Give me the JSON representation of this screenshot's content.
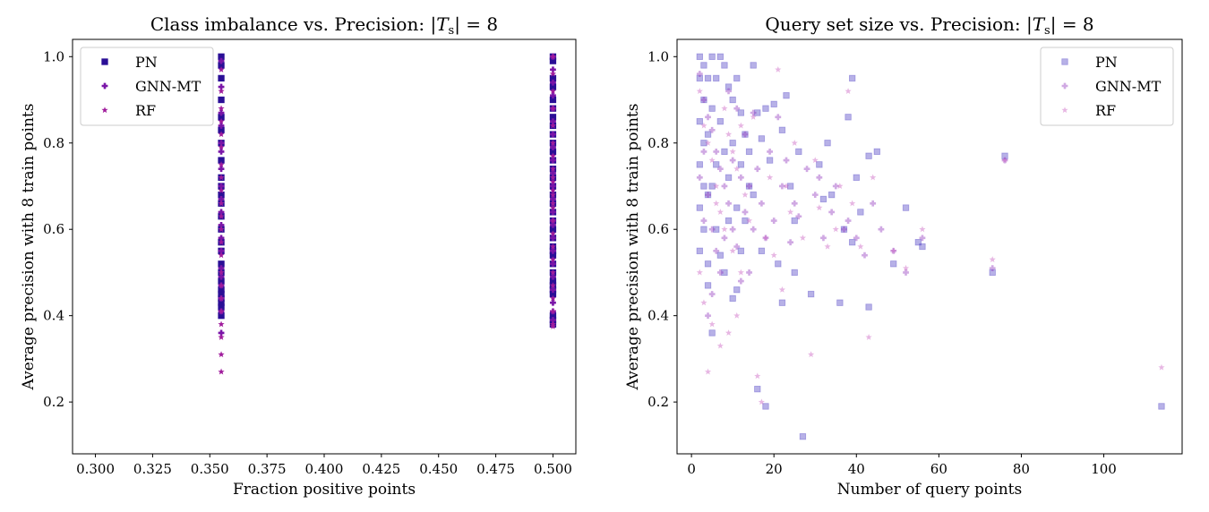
{
  "chart_data": [
    {
      "type": "scatter",
      "title": "Class imbalance vs. Precision: |T_s| = 8",
      "xlabel": "Fraction positive points",
      "ylabel": "Average precision with 8 train points",
      "xlim": [
        0.29,
        0.51
      ],
      "ylim": [
        0.08,
        1.04
      ],
      "xticks": [
        "0.300",
        "0.325",
        "0.350",
        "0.375",
        "0.400",
        "0.425",
        "0.450",
        "0.475",
        "0.500"
      ],
      "yticks": [
        "0.2",
        "0.4",
        "0.6",
        "0.8",
        "1.0"
      ],
      "legend_position": "top-left",
      "grid": false,
      "series": [
        {
          "name": "PN",
          "marker": "square",
          "color": "#2a0f96",
          "opacity": 1,
          "x": [
            0.355,
            0.355,
            0.355,
            0.355,
            0.355,
            0.355,
            0.355,
            0.355,
            0.355,
            0.355,
            0.355,
            0.355,
            0.355,
            0.355,
            0.355,
            0.355,
            0.355,
            0.355,
            0.355,
            0.355,
            0.355,
            0.355,
            0.355,
            0.355,
            0.355,
            0.5,
            0.5,
            0.5,
            0.5,
            0.5,
            0.5,
            0.5,
            0.5,
            0.5,
            0.5,
            0.5,
            0.5,
            0.5,
            0.5,
            0.5,
            0.5,
            0.5,
            0.5,
            0.5,
            0.5,
            0.5,
            0.5,
            0.5,
            0.5,
            0.5,
            0.5,
            0.5,
            0.5,
            0.5,
            0.5,
            0.5,
            0.5,
            0.5
          ],
          "y": [
            1.0,
            0.98,
            0.95,
            0.9,
            0.86,
            0.83,
            0.8,
            0.76,
            0.72,
            0.7,
            0.68,
            0.66,
            0.63,
            0.6,
            0.57,
            0.55,
            0.52,
            0.5,
            0.48,
            0.46,
            0.45,
            0.44,
            0.43,
            0.42,
            0.4,
            1.0,
            0.99,
            0.95,
            0.93,
            0.9,
            0.88,
            0.86,
            0.84,
            0.82,
            0.8,
            0.78,
            0.76,
            0.74,
            0.72,
            0.7,
            0.68,
            0.66,
            0.64,
            0.62,
            0.6,
            0.58,
            0.56,
            0.54,
            0.52,
            0.5,
            0.48,
            0.47,
            0.46,
            0.45,
            0.4,
            0.39,
            0.38,
            0.55
          ]
        },
        {
          "name": "GNN-MT",
          "marker": "plus",
          "color": "#7a16a8",
          "opacity": 1,
          "x": [
            0.355,
            0.355,
            0.355,
            0.355,
            0.355,
            0.355,
            0.355,
            0.355,
            0.355,
            0.355,
            0.355,
            0.355,
            0.355,
            0.355,
            0.355,
            0.355,
            0.355,
            0.355,
            0.355,
            0.5,
            0.5,
            0.5,
            0.5,
            0.5,
            0.5,
            0.5,
            0.5,
            0.5,
            0.5,
            0.5,
            0.5,
            0.5,
            0.5,
            0.5,
            0.5,
            0.5,
            0.5,
            0.5,
            0.5,
            0.5,
            0.5,
            0.5
          ],
          "y": [
            0.99,
            0.93,
            0.87,
            0.84,
            0.8,
            0.78,
            0.74,
            0.7,
            0.67,
            0.64,
            0.61,
            0.58,
            0.55,
            0.51,
            0.49,
            0.47,
            0.44,
            0.41,
            0.36,
            1.0,
            0.97,
            0.94,
            0.91,
            0.88,
            0.85,
            0.82,
            0.79,
            0.76,
            0.73,
            0.7,
            0.67,
            0.64,
            0.61,
            0.58,
            0.55,
            0.52,
            0.49,
            0.46,
            0.43,
            0.41,
            0.39,
            0.62
          ]
        },
        {
          "name": "RF",
          "marker": "star",
          "color": "#a01c9c",
          "opacity": 1,
          "x": [
            0.355,
            0.355,
            0.355,
            0.355,
            0.355,
            0.355,
            0.355,
            0.355,
            0.355,
            0.355,
            0.355,
            0.355,
            0.355,
            0.355,
            0.355,
            0.355,
            0.355,
            0.355,
            0.355,
            0.355,
            0.355,
            0.355,
            0.5,
            0.5,
            0.5,
            0.5,
            0.5,
            0.5,
            0.5,
            0.5,
            0.5,
            0.5,
            0.5,
            0.5,
            0.5,
            0.5,
            0.5,
            0.5,
            0.5,
            0.5,
            0.5,
            0.5,
            0.5,
            0.5,
            0.5,
            0.5
          ],
          "y": [
            0.97,
            0.92,
            0.88,
            0.85,
            0.82,
            0.79,
            0.75,
            0.72,
            0.69,
            0.66,
            0.63,
            0.6,
            0.57,
            0.54,
            0.5,
            0.47,
            0.44,
            0.41,
            0.38,
            0.35,
            0.31,
            0.27,
            1.0,
            0.96,
            0.92,
            0.88,
            0.84,
            0.8,
            0.77,
            0.74,
            0.71,
            0.68,
            0.65,
            0.62,
            0.59,
            0.56,
            0.53,
            0.5,
            0.47,
            0.44,
            0.41,
            0.38,
            0.375,
            0.72,
            0.69,
            0.66
          ]
        }
      ]
    },
    {
      "type": "scatter",
      "title": "Query set size vs. Precision: |T_s| = 8",
      "xlabel": "Number of query points",
      "ylabel": "Average precision with 8 train points",
      "xlim": [
        -3.5,
        119
      ],
      "ylim": [
        0.08,
        1.04
      ],
      "xticks": [
        "0",
        "20",
        "40",
        "60",
        "80",
        "100"
      ],
      "yticks": [
        "0.2",
        "0.4",
        "0.6",
        "0.8",
        "1.0"
      ],
      "legend_position": "top-right",
      "grid": false,
      "series": [
        {
          "name": "PN",
          "marker": "square",
          "color": "#4b3cc4",
          "opacity": 0.4,
          "x": [
            2,
            2,
            2,
            2,
            2,
            2,
            3,
            3,
            3,
            3,
            3,
            4,
            4,
            4,
            4,
            4,
            5,
            5,
            5,
            5,
            6,
            6,
            6,
            7,
            7,
            7,
            8,
            8,
            8,
            9,
            9,
            9,
            10,
            10,
            10,
            11,
            11,
            11,
            12,
            12,
            12,
            13,
            13,
            14,
            14,
            15,
            15,
            16,
            16,
            17,
            17,
            18,
            18,
            19,
            20,
            21,
            22,
            22,
            23,
            24,
            25,
            25,
            26,
            27,
            29,
            31,
            32,
            33,
            34,
            36,
            37,
            38,
            39,
            39,
            40,
            41,
            43,
            43,
            45,
            49,
            52,
            55,
            56,
            73,
            76,
            114
          ],
          "y": [
            1.0,
            0.95,
            0.85,
            0.75,
            0.65,
            0.55,
            0.98,
            0.9,
            0.8,
            0.7,
            0.6,
            0.95,
            0.82,
            0.68,
            0.52,
            0.47,
            1.0,
            0.88,
            0.7,
            0.36,
            0.95,
            0.75,
            0.6,
            1.0,
            0.85,
            0.54,
            0.98,
            0.78,
            0.5,
            0.93,
            0.72,
            0.62,
            0.9,
            0.8,
            0.44,
            0.95,
            0.65,
            0.46,
            0.87,
            0.75,
            0.55,
            0.82,
            0.62,
            0.78,
            0.7,
            0.98,
            0.68,
            0.87,
            0.23,
            0.81,
            0.55,
            0.88,
            0.19,
            0.76,
            0.89,
            0.52,
            0.83,
            0.43,
            0.91,
            0.7,
            0.5,
            0.62,
            0.78,
            0.12,
            0.45,
            0.75,
            0.67,
            0.8,
            0.68,
            0.43,
            0.6,
            0.86,
            0.95,
            0.57,
            0.72,
            0.64,
            0.42,
            0.77,
            0.78,
            0.52,
            0.65,
            0.57,
            0.56,
            0.5,
            0.77,
            0.19
          ]
        },
        {
          "name": "GNN-MT",
          "marker": "plus",
          "color": "#8a28b8",
          "opacity": 0.4,
          "x": [
            2,
            2,
            3,
            3,
            3,
            4,
            4,
            4,
            5,
            5,
            5,
            6,
            6,
            7,
            7,
            8,
            8,
            9,
            9,
            10,
            10,
            11,
            11,
            12,
            12,
            13,
            13,
            14,
            14,
            15,
            15,
            16,
            17,
            18,
            19,
            20,
            21,
            22,
            23,
            24,
            25,
            26,
            28,
            30,
            31,
            32,
            34,
            35,
            37,
            38,
            40,
            42,
            44,
            46,
            49,
            52,
            56,
            73,
            76
          ],
          "y": [
            0.96,
            0.72,
            0.9,
            0.78,
            0.62,
            0.86,
            0.68,
            0.4,
            0.83,
            0.6,
            0.45,
            0.78,
            0.55,
            0.74,
            0.5,
            0.7,
            0.58,
            0.92,
            0.66,
            0.76,
            0.6,
            0.88,
            0.56,
            0.72,
            0.48,
            0.82,
            0.64,
            0.7,
            0.5,
            0.87,
            0.6,
            0.74,
            0.66,
            0.58,
            0.78,
            0.62,
            0.86,
            0.7,
            0.76,
            0.57,
            0.66,
            0.63,
            0.74,
            0.68,
            0.72,
            0.58,
            0.64,
            0.7,
            0.6,
            0.62,
            0.58,
            0.54,
            0.66,
            0.6,
            0.55,
            0.5,
            0.58,
            0.51,
            0.76
          ]
        },
        {
          "name": "RF",
          "marker": "star",
          "color": "#c24ab8",
          "opacity": 0.4,
          "x": [
            2,
            2,
            3,
            3,
            4,
            4,
            5,
            5,
            6,
            6,
            7,
            7,
            8,
            8,
            9,
            9,
            10,
            10,
            11,
            11,
            12,
            12,
            13,
            14,
            15,
            16,
            17,
            18,
            19,
            20,
            21,
            22,
            23,
            24,
            25,
            27,
            29,
            30,
            31,
            33,
            35,
            36,
            38,
            39,
            41,
            43,
            44,
            49,
            52,
            56,
            73,
            76,
            114
          ],
          "y": [
            0.92,
            0.5,
            0.84,
            0.43,
            0.8,
            0.27,
            0.76,
            0.38,
            0.7,
            0.66,
            0.64,
            0.33,
            0.88,
            0.6,
            0.82,
            0.36,
            0.78,
            0.55,
            0.74,
            0.4,
            0.84,
            0.5,
            0.68,
            0.62,
            0.86,
            0.26,
            0.2,
            0.58,
            0.72,
            0.54,
            0.97,
            0.46,
            0.7,
            0.64,
            0.8,
            0.58,
            0.31,
            0.76,
            0.65,
            0.56,
            0.6,
            0.7,
            0.92,
            0.66,
            0.56,
            0.35,
            0.72,
            0.55,
            0.51,
            0.6,
            0.53,
            0.76,
            0.28
          ]
        }
      ]
    }
  ]
}
